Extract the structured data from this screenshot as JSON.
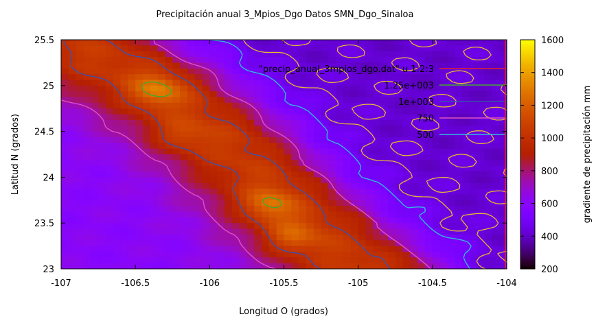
{
  "chart_data": {
    "type": "heatmap",
    "title": "Precipitación anual 3_Mpios_Dgo Datos SMN_Dgo_Sinaloa",
    "xlabel": "Longitud O (grados)",
    "ylabel": "Latitud N (grados)",
    "colorbar_label": "gradiente de precipitación mm",
    "xlim": [
      -107,
      -104
    ],
    "ylim": [
      23,
      25.5
    ],
    "clim": [
      200,
      1600
    ],
    "x_ticks": [
      "-107",
      "-106.5",
      "-106",
      "-105.5",
      "-105",
      "-104.5",
      "-104"
    ],
    "y_ticks": [
      "23",
      "23.5",
      "24",
      "24.5",
      "25",
      "25.5"
    ],
    "colorbar_ticks": [
      "200",
      "400",
      "600",
      "800",
      "1000",
      "1200",
      "1400",
      "1600"
    ],
    "grid": false,
    "legend_position": "top-right",
    "legend": [
      {
        "label": "\"precip_anual_3mpios_dgo.dat\" u 1:2:3",
        "color": "#e8202a"
      },
      {
        "label": "1.25e+003",
        "color": "#44a830"
      },
      {
        "label": "1e+003",
        "color": "#3a50b0"
      },
      {
        "label": "750",
        "color": "#e050c8"
      },
      {
        "label": "500",
        "color": "#30b8e0"
      }
    ],
    "contour_other_color": "#e8b830",
    "field_description": "ridge of high precipitation along a NW-SE band from about (-106.8,25.3) to (-105.0,23.0); lower values to the NE and SW",
    "ridge": {
      "points": [
        [
          -106.85,
          25.4
        ],
        [
          -106.3,
          24.9
        ],
        [
          -105.85,
          24.3
        ],
        [
          -105.5,
          23.7
        ],
        [
          -105.15,
          23.2
        ],
        [
          -104.9,
          22.9
        ]
      ],
      "base_value": 1050,
      "width": 0.55
    },
    "hotspots": [
      {
        "x": -106.35,
        "y": 24.95,
        "value": 1320
      },
      {
        "x": -105.6,
        "y": 23.7,
        "value": 1300
      },
      {
        "x": -105.45,
        "y": 23.35,
        "value": 1260
      },
      {
        "x": -106.2,
        "y": 24.45,
        "value": 1180
      }
    ],
    "background_value_ne": 420,
    "background_value_sw": 600
  }
}
